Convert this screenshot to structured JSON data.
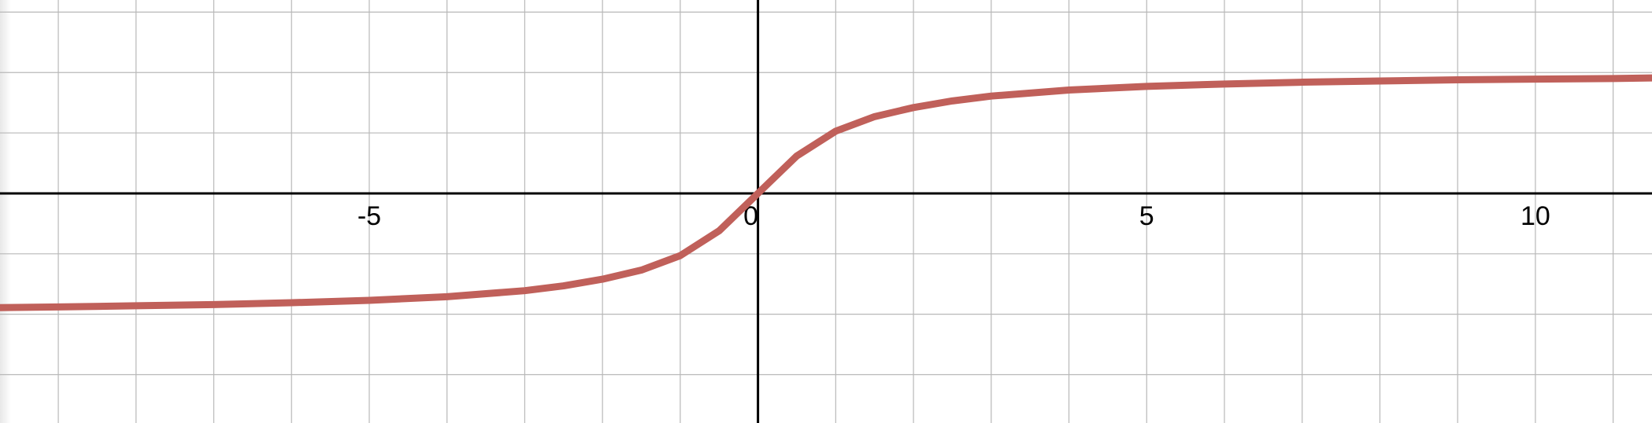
{
  "chart_data": {
    "type": "line",
    "title": "",
    "xlabel": "",
    "ylabel": "",
    "xlim": [
      -9.75,
      11.5
    ],
    "ylim": [
      -3.8,
      3.2
    ],
    "grid": true,
    "x_ticks": [
      {
        "value": -5,
        "label": "-5"
      },
      {
        "value": 0,
        "label": "0"
      },
      {
        "value": 5,
        "label": "5"
      },
      {
        "value": 10,
        "label": "10"
      }
    ],
    "series": [
      {
        "color": "#c0605a",
        "x": [
          -9.75,
          -9,
          -8,
          -7,
          -6,
          -5,
          -4,
          -3,
          -2.5,
          -2,
          -1.5,
          -1,
          -0.5,
          0,
          0.5,
          1,
          1.5,
          2,
          2.5,
          3,
          4,
          5,
          6,
          7,
          8,
          9,
          10,
          11,
          11.5
        ],
        "y": [
          -1.89,
          -1.88,
          -1.86,
          -1.84,
          -1.81,
          -1.77,
          -1.71,
          -1.61,
          -1.53,
          -1.42,
          -1.27,
          -1.03,
          -0.62,
          0,
          0.62,
          1.03,
          1.27,
          1.42,
          1.53,
          1.61,
          1.71,
          1.77,
          1.81,
          1.84,
          1.86,
          1.88,
          1.89,
          1.9,
          1.91
        ]
      }
    ]
  }
}
